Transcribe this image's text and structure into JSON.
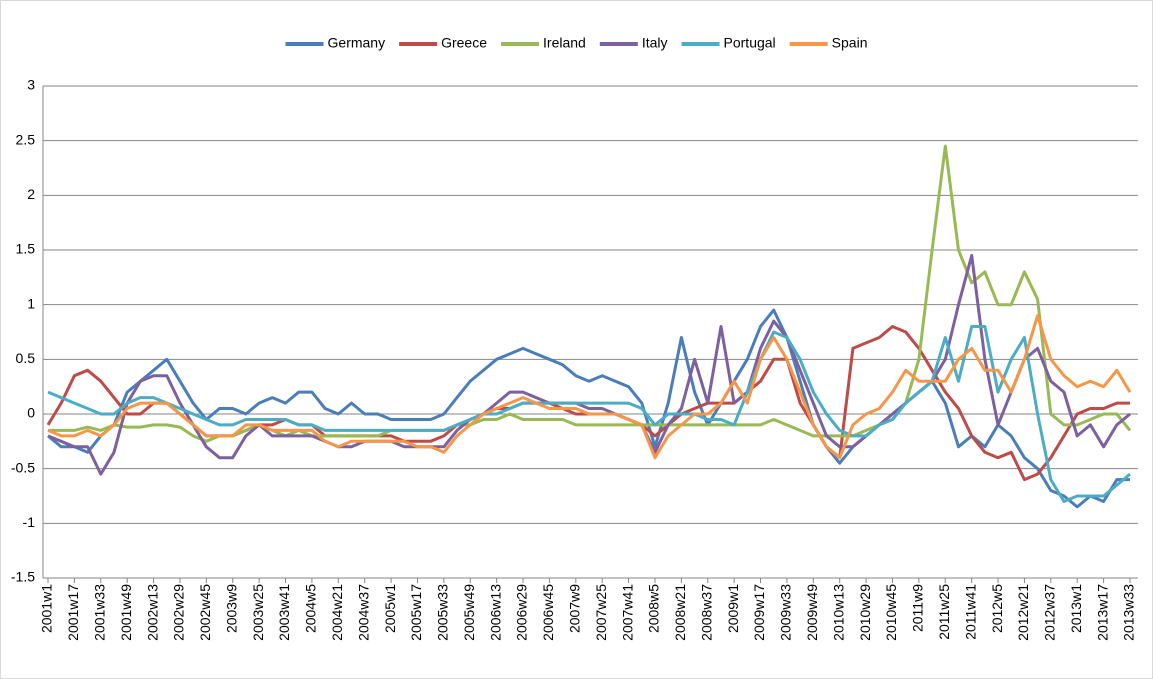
{
  "chart_data": {
    "type": "line",
    "categories": [
      "2001w1",
      null,
      "2001w17",
      null,
      "2001w33",
      null,
      "2001w49",
      null,
      "2002w13",
      null,
      "2002w29",
      null,
      "2002w45",
      null,
      "2003w9",
      null,
      "2003w25",
      null,
      "2003w41",
      null,
      "2004w5",
      null,
      "2004w21",
      null,
      "2004w37",
      null,
      "2005w1",
      null,
      "2005w17",
      null,
      "2005w33",
      null,
      "2005w49",
      null,
      "2006w13",
      null,
      "2006w29",
      null,
      "2006w45",
      null,
      "2007w9",
      null,
      "2007w25",
      null,
      "2007w41",
      null,
      "2008w5",
      null,
      "2008w21",
      null,
      "2008w37",
      null,
      "2009w1",
      null,
      "2009w17",
      null,
      "2009w33",
      null,
      "2009w49",
      null,
      "2010w13",
      null,
      "2010w29",
      null,
      "2010w45",
      null,
      "2011w9",
      null,
      "2011w25",
      null,
      "2011w41",
      null,
      "2012w5",
      null,
      "2012w21",
      null,
      "2012w37",
      null,
      "2013w1",
      null,
      "2013w17",
      null,
      "2013w33"
    ],
    "series": [
      {
        "name": "Germany",
        "color": "#4a7ebb",
        "values": [
          -0.2,
          -0.3,
          -0.3,
          -0.35,
          -0.2,
          -0.1,
          0.2,
          0.3,
          0.4,
          0.5,
          0.3,
          0.1,
          -0.05,
          0.05,
          0.05,
          0.0,
          0.1,
          0.15,
          0.1,
          0.2,
          0.2,
          0.05,
          0.0,
          0.1,
          0.0,
          0.0,
          -0.05,
          -0.05,
          -0.05,
          -0.05,
          0.0,
          0.15,
          0.3,
          0.4,
          0.5,
          0.55,
          0.6,
          0.55,
          0.5,
          0.45,
          0.35,
          0.3,
          0.35,
          0.3,
          0.25,
          0.1,
          -0.3,
          0.1,
          0.7,
          0.2,
          -0.1,
          0.1,
          0.3,
          0.5,
          0.8,
          0.95,
          0.7,
          0.3,
          -0.1,
          -0.3,
          -0.45,
          -0.3,
          -0.2,
          -0.1,
          0.0,
          0.1,
          0.2,
          0.3,
          0.1,
          -0.3,
          -0.2,
          -0.3,
          -0.1,
          -0.2,
          -0.4,
          -0.5,
          -0.7,
          -0.75,
          -0.85,
          -0.75,
          -0.8,
          -0.6,
          -0.6
        ]
      },
      {
        "name": "Greece",
        "color": "#be4b48",
        "values": [
          -0.1,
          0.1,
          0.35,
          0.4,
          0.3,
          0.15,
          0.0,
          0.0,
          0.1,
          0.1,
          0.0,
          -0.1,
          -0.2,
          -0.2,
          -0.2,
          -0.15,
          -0.1,
          -0.1,
          -0.05,
          -0.1,
          -0.1,
          -0.2,
          -0.2,
          -0.2,
          -0.2,
          -0.2,
          -0.2,
          -0.25,
          -0.25,
          -0.25,
          -0.2,
          -0.1,
          -0.05,
          0.0,
          0.05,
          0.05,
          0.1,
          0.1,
          0.1,
          0.05,
          0.0,
          0.0,
          0.0,
          0.0,
          -0.05,
          -0.1,
          -0.2,
          -0.1,
          0.0,
          0.05,
          0.1,
          0.1,
          0.1,
          0.2,
          0.3,
          0.5,
          0.5,
          0.1,
          -0.1,
          -0.3,
          -0.4,
          0.6,
          0.65,
          0.7,
          0.8,
          0.75,
          0.6,
          0.4,
          0.2,
          0.05,
          -0.2,
          -0.35,
          -0.4,
          -0.35,
          -0.6,
          -0.55,
          -0.4,
          -0.2,
          0.0,
          0.05,
          0.05,
          0.1,
          0.1
        ]
      },
      {
        "name": "Ireland",
        "color": "#98b954",
        "values": [
          -0.15,
          -0.15,
          -0.15,
          -0.12,
          -0.15,
          -0.1,
          -0.12,
          -0.12,
          -0.1,
          -0.1,
          -0.12,
          -0.2,
          -0.25,
          -0.2,
          -0.2,
          -0.15,
          -0.1,
          -0.15,
          -0.2,
          -0.15,
          -0.2,
          -0.2,
          -0.2,
          -0.2,
          -0.2,
          -0.2,
          -0.15,
          -0.15,
          -0.15,
          -0.15,
          -0.15,
          -0.1,
          -0.1,
          -0.05,
          -0.05,
          0.0,
          -0.05,
          -0.05,
          -0.05,
          -0.05,
          -0.1,
          -0.1,
          -0.1,
          -0.1,
          -0.1,
          -0.1,
          -0.1,
          -0.1,
          -0.1,
          -0.1,
          -0.1,
          -0.1,
          -0.1,
          -0.1,
          -0.1,
          -0.05,
          -0.1,
          -0.15,
          -0.2,
          -0.2,
          -0.2,
          -0.2,
          -0.15,
          -0.1,
          -0.05,
          0.1,
          0.5,
          1.5,
          2.45,
          1.5,
          1.2,
          1.3,
          1.0,
          1.0,
          1.3,
          1.05,
          0.0,
          -0.1,
          -0.1,
          -0.05,
          0.0,
          0.0,
          -0.15
        ]
      },
      {
        "name": "Italy",
        "color": "#7d60a0",
        "values": [
          -0.2,
          -0.25,
          -0.3,
          -0.3,
          -0.55,
          -0.35,
          0.1,
          0.3,
          0.35,
          0.35,
          0.1,
          -0.1,
          -0.3,
          -0.4,
          -0.4,
          -0.2,
          -0.1,
          -0.2,
          -0.2,
          -0.2,
          -0.2,
          -0.25,
          -0.3,
          -0.3,
          -0.25,
          -0.25,
          -0.25,
          -0.3,
          -0.3,
          -0.3,
          -0.3,
          -0.15,
          -0.05,
          0.0,
          0.1,
          0.2,
          0.2,
          0.15,
          0.1,
          0.1,
          0.1,
          0.05,
          0.05,
          0.0,
          -0.05,
          -0.1,
          -0.35,
          -0.1,
          0.05,
          0.5,
          0.1,
          0.8,
          0.1,
          0.2,
          0.6,
          0.85,
          0.7,
          0.4,
          0.1,
          -0.2,
          -0.3,
          -0.3,
          -0.2,
          -0.1,
          0.0,
          0.1,
          0.2,
          0.3,
          0.5,
          1.0,
          1.45,
          0.5,
          -0.1,
          0.2,
          0.5,
          0.6,
          0.3,
          0.2,
          -0.2,
          -0.1,
          -0.3,
          -0.1,
          0.0
        ]
      },
      {
        "name": "Portugal",
        "color": "#4bacc6",
        "values": [
          0.2,
          0.15,
          0.1,
          0.05,
          0.0,
          0.0,
          0.1,
          0.15,
          0.15,
          0.1,
          0.05,
          0.0,
          -0.05,
          -0.1,
          -0.1,
          -0.05,
          -0.05,
          -0.05,
          -0.05,
          -0.1,
          -0.1,
          -0.15,
          -0.15,
          -0.15,
          -0.15,
          -0.15,
          -0.15,
          -0.15,
          -0.15,
          -0.15,
          -0.15,
          -0.1,
          -0.05,
          0.0,
          0.0,
          0.05,
          0.1,
          0.1,
          0.1,
          0.1,
          0.1,
          0.1,
          0.1,
          0.1,
          0.1,
          0.05,
          -0.1,
          0.0,
          0.0,
          0.0,
          -0.05,
          -0.05,
          -0.1,
          0.2,
          0.5,
          0.75,
          0.7,
          0.5,
          0.2,
          0.0,
          -0.15,
          -0.2,
          -0.2,
          -0.1,
          -0.05,
          0.1,
          0.2,
          0.3,
          0.7,
          0.3,
          0.8,
          0.8,
          0.2,
          0.5,
          0.7,
          0.0,
          -0.6,
          -0.8,
          -0.75,
          -0.75,
          -0.75,
          -0.65,
          -0.55
        ]
      },
      {
        "name": "Spain",
        "color": "#f79646",
        "values": [
          -0.15,
          -0.2,
          -0.2,
          -0.15,
          -0.2,
          -0.1,
          0.05,
          0.1,
          0.1,
          0.1,
          0.0,
          -0.1,
          -0.2,
          -0.2,
          -0.2,
          -0.1,
          -0.1,
          -0.15,
          -0.15,
          -0.15,
          -0.15,
          -0.25,
          -0.3,
          -0.25,
          -0.25,
          -0.25,
          -0.25,
          -0.25,
          -0.3,
          -0.3,
          -0.35,
          -0.2,
          -0.1,
          0.0,
          0.05,
          0.1,
          0.15,
          0.1,
          0.05,
          0.05,
          0.05,
          0.0,
          0.0,
          0.0,
          -0.05,
          -0.1,
          -0.4,
          -0.2,
          -0.1,
          0.0,
          0.0,
          0.1,
          0.3,
          0.1,
          0.5,
          0.7,
          0.5,
          0.2,
          -0.1,
          -0.3,
          -0.4,
          -0.1,
          0.0,
          0.05,
          0.2,
          0.4,
          0.3,
          0.3,
          0.3,
          0.5,
          0.6,
          0.4,
          0.4,
          0.2,
          0.5,
          0.9,
          0.5,
          0.35,
          0.25,
          0.3,
          0.25,
          0.4,
          0.2
        ]
      }
    ],
    "ylim": [
      -1.5,
      3
    ],
    "yticks": [
      -1.5,
      -1,
      -0.5,
      0,
      0.5,
      1,
      1.5,
      2,
      2.5,
      3
    ],
    "grid": true,
    "legend": "top"
  }
}
